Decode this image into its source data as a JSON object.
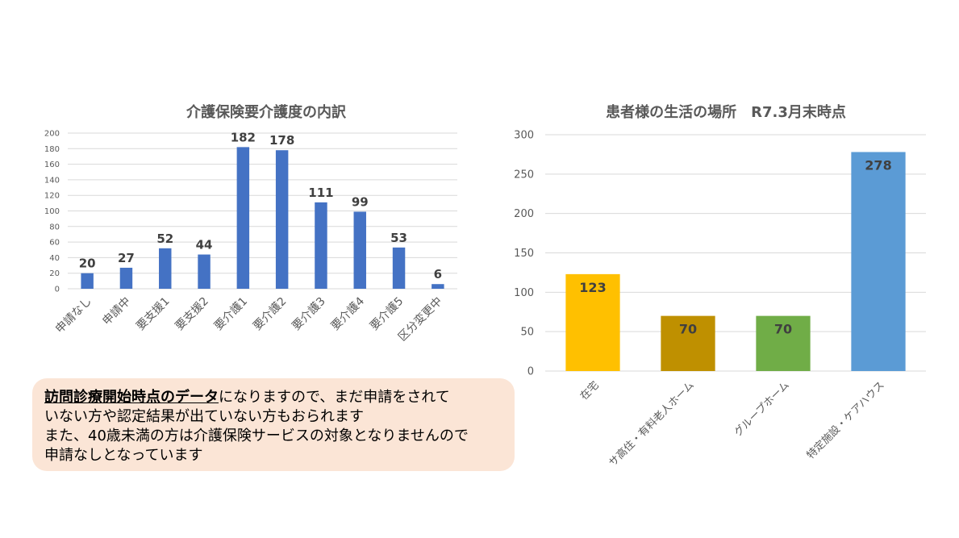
{
  "charts": {
    "left": {
      "title": "介護保険要介護度の内訳",
      "color": "#4472c4"
    },
    "right": {
      "title": "患者様の生活の場所　R7.3月末時点"
    }
  },
  "note": {
    "emphasis": "訪問診療開始時点のデータ",
    "text": "になりますので、まだ申請をされて\nいない方や認定結果が出ていない方もおられます\nまた、40歳未満の方は介護保険サービスの対象となりませんので\n申請なしとなっています"
  },
  "chart_data": [
    {
      "type": "bar",
      "title": "介護保険要介護度の内訳",
      "categories": [
        "申請なし",
        "申請中",
        "要支援1",
        "要支援2",
        "要介護1",
        "要介護2",
        "要介護3",
        "要介護4",
        "要介護5",
        "区分変更中"
      ],
      "values": [
        20,
        27,
        52,
        44,
        182,
        178,
        111,
        99,
        53,
        6
      ],
      "ylim": [
        0,
        200
      ],
      "yticks": [
        0,
        20,
        40,
        60,
        80,
        100,
        120,
        140,
        160,
        180,
        200
      ],
      "grid": true,
      "color": "#4472c4"
    },
    {
      "type": "bar",
      "title": "患者様の生活の場所　R7.3月末時点",
      "categories": [
        "在宅",
        "サ高住・有料老人ホーム",
        "グループホーム",
        "特定施設・ケアハウス"
      ],
      "values": [
        123,
        70,
        70,
        278
      ],
      "colors": [
        "#ffc000",
        "#bf9000",
        "#70ad47",
        "#5b9bd5"
      ],
      "ylim": [
        0,
        300
      ],
      "yticks": [
        0,
        50,
        100,
        150,
        200,
        250,
        300
      ],
      "grid": true
    }
  ]
}
